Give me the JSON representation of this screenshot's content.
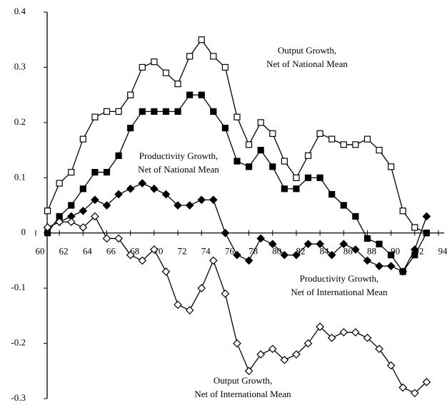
{
  "chart_data": {
    "type": "line",
    "x": [
      61,
      62,
      63,
      64,
      65,
      66,
      67,
      68,
      69,
      70,
      71,
      72,
      73,
      74,
      75,
      76,
      77,
      78,
      79,
      80,
      81,
      82,
      83,
      84,
      85,
      86,
      87,
      88,
      89,
      90,
      91,
      92,
      93
    ],
    "xlim": [
      60,
      94
    ],
    "xticks": [
      60,
      62,
      64,
      66,
      68,
      70,
      72,
      74,
      76,
      78,
      80,
      82,
      84,
      86,
      88,
      90,
      92,
      94
    ],
    "ylim": [
      -0.3,
      0.4
    ],
    "yticks": [
      0.4,
      0.3,
      0.2,
      0.1,
      0,
      -0.1,
      -0.2,
      -0.3
    ],
    "series": [
      {
        "label": [
          "Output Growth,",
          "Net of National Mean"
        ],
        "marker": "open-square",
        "color": "#000000",
        "values": [
          0.04,
          0.09,
          0.11,
          0.17,
          0.21,
          0.22,
          0.22,
          0.25,
          0.3,
          0.31,
          0.29,
          0.27,
          0.32,
          0.35,
          0.32,
          0.3,
          0.21,
          0.16,
          0.2,
          0.18,
          0.13,
          0.1,
          0.14,
          0.18,
          0.17,
          0.16,
          0.16,
          0.17,
          0.15,
          0.12,
          0.04,
          0.01,
          0.0
        ]
      },
      {
        "label": [
          "Productivity Growth,",
          "Net of National Mean"
        ],
        "marker": "filled-square",
        "color": "#000000",
        "values": [
          0.0,
          0.03,
          0.05,
          0.08,
          0.11,
          0.11,
          0.14,
          0.19,
          0.22,
          0.22,
          0.22,
          0.22,
          0.25,
          0.25,
          0.22,
          0.19,
          0.13,
          0.12,
          0.15,
          0.12,
          0.08,
          0.08,
          0.1,
          0.1,
          0.07,
          0.05,
          0.03,
          -0.01,
          -0.02,
          -0.04,
          -0.07,
          -0.04,
          0.0
        ]
      },
      {
        "label": [
          "Productivity Growth,",
          "Net of International Mean"
        ],
        "marker": "filled-diamond",
        "color": "#000000",
        "values": [
          0.01,
          0.02,
          0.03,
          0.04,
          0.06,
          0.05,
          0.07,
          0.08,
          0.09,
          0.08,
          0.07,
          0.05,
          0.05,
          0.06,
          0.06,
          0.0,
          -0.04,
          -0.05,
          -0.01,
          -0.02,
          -0.04,
          -0.04,
          -0.02,
          -0.02,
          -0.04,
          -0.02,
          -0.03,
          -0.05,
          -0.06,
          -0.06,
          -0.07,
          -0.03,
          0.03
        ]
      },
      {
        "label": [
          "Output Growth,",
          "Net of International Mean"
        ],
        "marker": "open-diamond",
        "color": "#000000",
        "values": [
          0.01,
          0.02,
          0.02,
          0.01,
          0.03,
          -0.01,
          -0.01,
          -0.04,
          -0.05,
          -0.03,
          -0.07,
          -0.13,
          -0.14,
          -0.1,
          -0.05,
          -0.11,
          -0.2,
          -0.25,
          -0.22,
          -0.21,
          -0.23,
          -0.22,
          -0.2,
          -0.17,
          -0.19,
          -0.18,
          -0.18,
          -0.19,
          -0.21,
          -0.24,
          -0.28,
          -0.29,
          -0.27
        ]
      }
    ]
  }
}
